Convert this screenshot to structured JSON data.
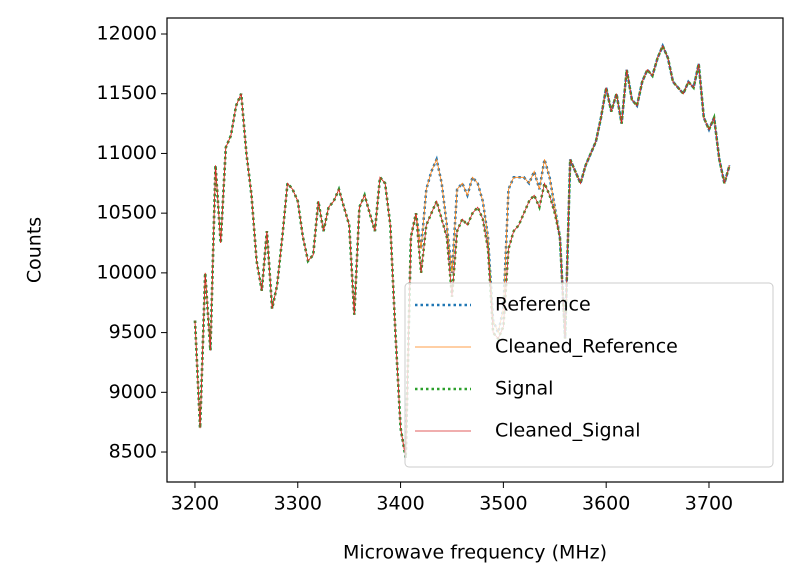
{
  "chart_data": {
    "type": "line",
    "xlabel": "Microwave frequency (MHz)",
    "ylabel": "Counts",
    "x": [
      3200,
      3205,
      3210,
      3215,
      3220,
      3225,
      3230,
      3235,
      3240,
      3245,
      3250,
      3255,
      3260,
      3265,
      3270,
      3275,
      3280,
      3285,
      3290,
      3295,
      3300,
      3305,
      3310,
      3315,
      3320,
      3325,
      3330,
      3335,
      3340,
      3345,
      3350,
      3355,
      3360,
      3365,
      3370,
      3375,
      3380,
      3385,
      3390,
      3395,
      3400,
      3405,
      3410,
      3415,
      3420,
      3425,
      3430,
      3435,
      3440,
      3445,
      3450,
      3455,
      3460,
      3465,
      3470,
      3475,
      3480,
      3485,
      3490,
      3495,
      3500,
      3505,
      3510,
      3515,
      3520,
      3525,
      3530,
      3535,
      3540,
      3545,
      3550,
      3555,
      3560,
      3565,
      3570,
      3575,
      3580,
      3585,
      3590,
      3595,
      3600,
      3605,
      3610,
      3615,
      3620,
      3625,
      3630,
      3635,
      3640,
      3645,
      3650,
      3655,
      3660,
      3665,
      3670,
      3675,
      3680,
      3685,
      3690,
      3695,
      3700,
      3705,
      3710,
      3715,
      3720
    ],
    "series": [
      {
        "name": "Reference",
        "color": "#1f77b4",
        "linestyle": "dotted",
        "linewidth": 2.5,
        "values": [
          9600,
          8700,
          10000,
          9350,
          10900,
          10250,
          11050,
          11150,
          11400,
          11500,
          11000,
          10650,
          10100,
          9850,
          10350,
          9700,
          9900,
          10300,
          10750,
          10700,
          10600,
          10300,
          10100,
          10150,
          10600,
          10350,
          10550,
          10600,
          10700,
          10550,
          10400,
          9650,
          10550,
          10650,
          10500,
          10350,
          10800,
          10750,
          10400,
          9500,
          8700,
          8450,
          10300,
          10500,
          10200,
          10700,
          10850,
          10950,
          10750,
          10400,
          10000,
          10700,
          10750,
          10650,
          10800,
          10750,
          10600,
          10300,
          9600,
          9500,
          9700,
          10700,
          10800,
          10800,
          10800,
          10750,
          10850,
          10700,
          10950,
          10800,
          10550,
          10300,
          9450,
          10950,
          10850,
          10750,
          10900,
          11000,
          11100,
          11300,
          11550,
          11350,
          11500,
          11250,
          11700,
          11450,
          11400,
          11600,
          11700,
          11650,
          11800,
          11900,
          11800,
          11600,
          11550,
          11500,
          11600,
          11550,
          11750,
          11300,
          11200,
          11300,
          10950,
          10750,
          10900
        ]
      },
      {
        "name": "Cleaned_Reference",
        "color": "#ff7f0e",
        "linestyle": "solid",
        "linewidth": 0.8,
        "values": [
          9600,
          8700,
          10000,
          9350,
          10900,
          10250,
          11050,
          11150,
          11400,
          11500,
          11000,
          10650,
          10100,
          9850,
          10350,
          9700,
          9900,
          10300,
          10750,
          10700,
          10600,
          10300,
          10100,
          10150,
          10600,
          10350,
          10550,
          10600,
          10700,
          10550,
          10400,
          9650,
          10550,
          10650,
          10500,
          10350,
          10800,
          10750,
          10400,
          9500,
          8700,
          8450,
          10300,
          10500,
          10200,
          10700,
          10850,
          10950,
          10750,
          10400,
          10000,
          10700,
          10750,
          10650,
          10800,
          10750,
          10600,
          10300,
          9600,
          9500,
          9700,
          10700,
          10800,
          10800,
          10800,
          10750,
          10850,
          10700,
          10950,
          10800,
          10550,
          10300,
          9450,
          10950,
          10850,
          10750,
          10900,
          11000,
          11100,
          11300,
          11550,
          11350,
          11500,
          11250,
          11700,
          11450,
          11400,
          11600,
          11700,
          11650,
          11800,
          11900,
          11800,
          11600,
          11550,
          11500,
          11600,
          11550,
          11750,
          11300,
          11200,
          11300,
          10950,
          10750,
          10900
        ]
      },
      {
        "name": "Signal",
        "color": "#2ca02c",
        "linestyle": "dotted",
        "linewidth": 2.5,
        "values": [
          9600,
          8700,
          10000,
          9350,
          10900,
          10250,
          11050,
          11150,
          11400,
          11500,
          11000,
          10650,
          10100,
          9850,
          10350,
          9700,
          9900,
          10300,
          10750,
          10700,
          10600,
          10300,
          10100,
          10150,
          10600,
          10350,
          10550,
          10600,
          10700,
          10550,
          10400,
          9650,
          10550,
          10650,
          10500,
          10350,
          10800,
          10750,
          10400,
          9500,
          8700,
          8450,
          10300,
          10500,
          10000,
          10400,
          10500,
          10600,
          10450,
          10300,
          9800,
          10350,
          10450,
          10400,
          10500,
          10550,
          10450,
          10200,
          9500,
          9450,
          9550,
          10200,
          10350,
          10400,
          10500,
          10600,
          10650,
          10550,
          10750,
          10650,
          10500,
          10300,
          9450,
          10950,
          10850,
          10750,
          10900,
          11000,
          11100,
          11300,
          11550,
          11350,
          11500,
          11250,
          11700,
          11450,
          11400,
          11600,
          11700,
          11650,
          11800,
          11900,
          11800,
          11600,
          11550,
          11500,
          11600,
          11550,
          11750,
          11300,
          11200,
          11300,
          10950,
          10750,
          10900
        ]
      },
      {
        "name": "Cleaned_Signal",
        "color": "#d62728",
        "linestyle": "solid",
        "linewidth": 0.8,
        "values": [
          9600,
          8700,
          10000,
          9350,
          10900,
          10250,
          11050,
          11150,
          11400,
          11500,
          11000,
          10650,
          10100,
          9850,
          10350,
          9700,
          9900,
          10300,
          10750,
          10700,
          10600,
          10300,
          10100,
          10150,
          10600,
          10350,
          10550,
          10600,
          10700,
          10550,
          10400,
          9650,
          10550,
          10650,
          10500,
          10350,
          10800,
          10750,
          10400,
          9500,
          8700,
          8450,
          10300,
          10500,
          10000,
          10400,
          10500,
          10600,
          10450,
          10300,
          9800,
          10350,
          10450,
          10400,
          10500,
          10550,
          10450,
          10200,
          9500,
          9450,
          9550,
          10200,
          10350,
          10400,
          10500,
          10600,
          10650,
          10550,
          10750,
          10650,
          10500,
          10300,
          9450,
          10950,
          10850,
          10750,
          10900,
          11000,
          11100,
          11300,
          11550,
          11350,
          11500,
          11250,
          11700,
          11450,
          11400,
          11600,
          11700,
          11650,
          11800,
          11900,
          11800,
          11600,
          11550,
          11500,
          11600,
          11550,
          11750,
          11300,
          11200,
          11300,
          10950,
          10750,
          10900
        ]
      }
    ],
    "xlim": [
      3172.8,
      3772
    ],
    "xticks": [
      3200,
      3300,
      3400,
      3500,
      3600,
      3700
    ],
    "ylim": [
      8249,
      12134
    ],
    "yticks": [
      8500,
      9000,
      9500,
      10000,
      10500,
      11000,
      11500,
      12000
    ],
    "grid": false,
    "legend": "lower right"
  }
}
